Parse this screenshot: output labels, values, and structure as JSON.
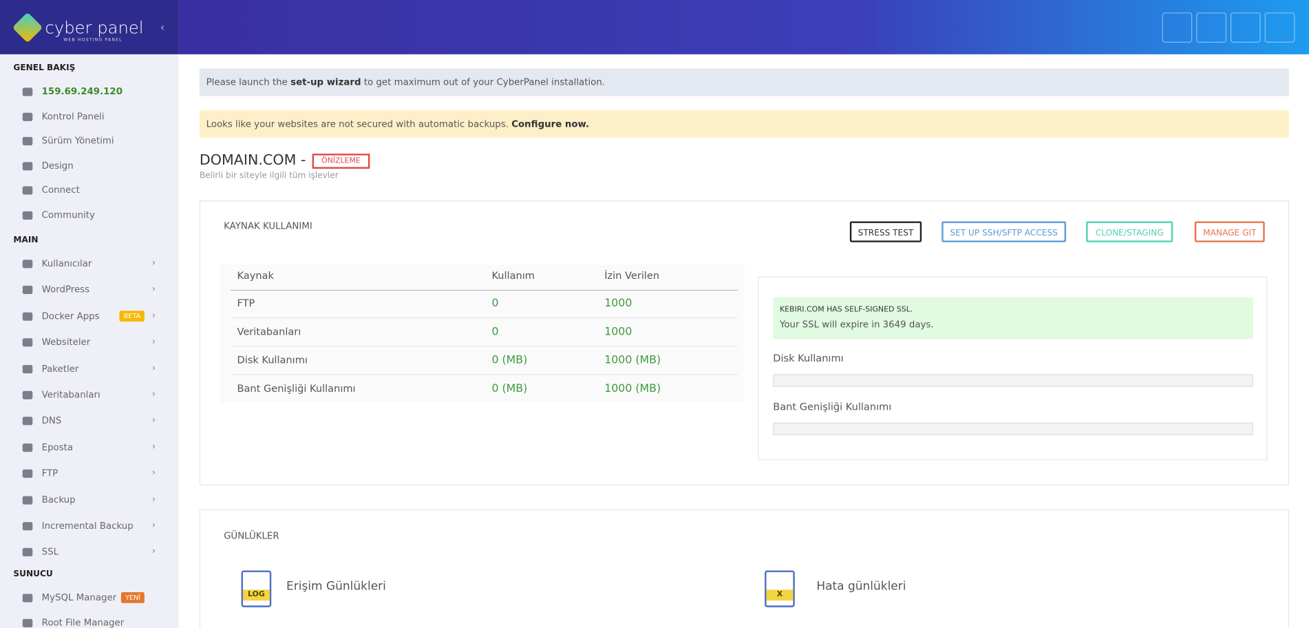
{
  "sidebar": {
    "brand": "cyber panel",
    "brand_sub": "WEB HOSTING PANEL",
    "sections": [
      {
        "title": "GENEL BAKIŞ",
        "items": [
          {
            "label": "159.69.249.120"
          },
          {
            "label": "Kontrol Paneli"
          },
          {
            "label": "Sürüm Yönetimi"
          },
          {
            "label": "Design"
          },
          {
            "label": "Connect"
          },
          {
            "label": "Community"
          }
        ]
      },
      {
        "title": "MAIN",
        "items": [
          {
            "label": "Kullanıcılar"
          },
          {
            "label": "WordPress"
          },
          {
            "label": "Docker Apps",
            "badge": "BETA"
          },
          {
            "label": "Websiteler"
          },
          {
            "label": "Paketler"
          },
          {
            "label": "Veritabanları"
          },
          {
            "label": "DNS"
          },
          {
            "label": "Eposta"
          },
          {
            "label": "FTP"
          },
          {
            "label": "Backup"
          },
          {
            "label": "Incremental Backup"
          },
          {
            "label": "SSL"
          }
        ]
      },
      {
        "title": "SUNUCU",
        "items": [
          {
            "label": "MySQL Manager",
            "badge": "YENİ"
          },
          {
            "label": "Root File Manager"
          }
        ]
      }
    ]
  },
  "alerts": [
    {
      "parts": [
        "Please launch the ",
        "set-up wizard",
        " to get maximum out of your CyberPanel installation."
      ]
    },
    {
      "parts": [
        "Looks like your websites are not secured with automatic backups. ",
        "Configure now."
      ]
    }
  ],
  "domain": {
    "title": "DOMAIN.COM -",
    "preview": "ÖNİZLEME",
    "subtitle": "Belirli bir siteyle ilgili tüm işlevler"
  },
  "resources": {
    "title": "KAYNAK KULLANIMI",
    "buttons": [
      "STRESS TEST",
      "SET UP SSH/SFTP ACCESS",
      "CLONE/STAGING",
      "MANAGE GIT"
    ],
    "table": {
      "header": [
        "Kaynak",
        "Kullanım",
        "İzin Verilen"
      ],
      "rows": [
        [
          "FTP",
          "0",
          "1000"
        ],
        [
          "Veritabanları",
          "0",
          "1000"
        ],
        [
          "Disk Kullanımı",
          "0 (MB)",
          "1000 (MB)"
        ],
        [
          "Bant Genişliği Kullanımı",
          "0 (MB)",
          "1000 (MB)"
        ]
      ]
    }
  },
  "ssl": {
    "title": "KEBIRI.COM HAS SELF-SIGNED SSL.",
    "text": "Your SSL will expire in 3649 days."
  },
  "usage_bars": [
    "Disk Kullanımı",
    "Bant Genişliği Kullanımı"
  ],
  "logs": {
    "title": "GÜNLÜKLER",
    "items": [
      {
        "icon": "LOG",
        "label": "Erişim Günlükleri"
      },
      {
        "icon": "X",
        "label": "Hata günlükleri"
      }
    ]
  }
}
